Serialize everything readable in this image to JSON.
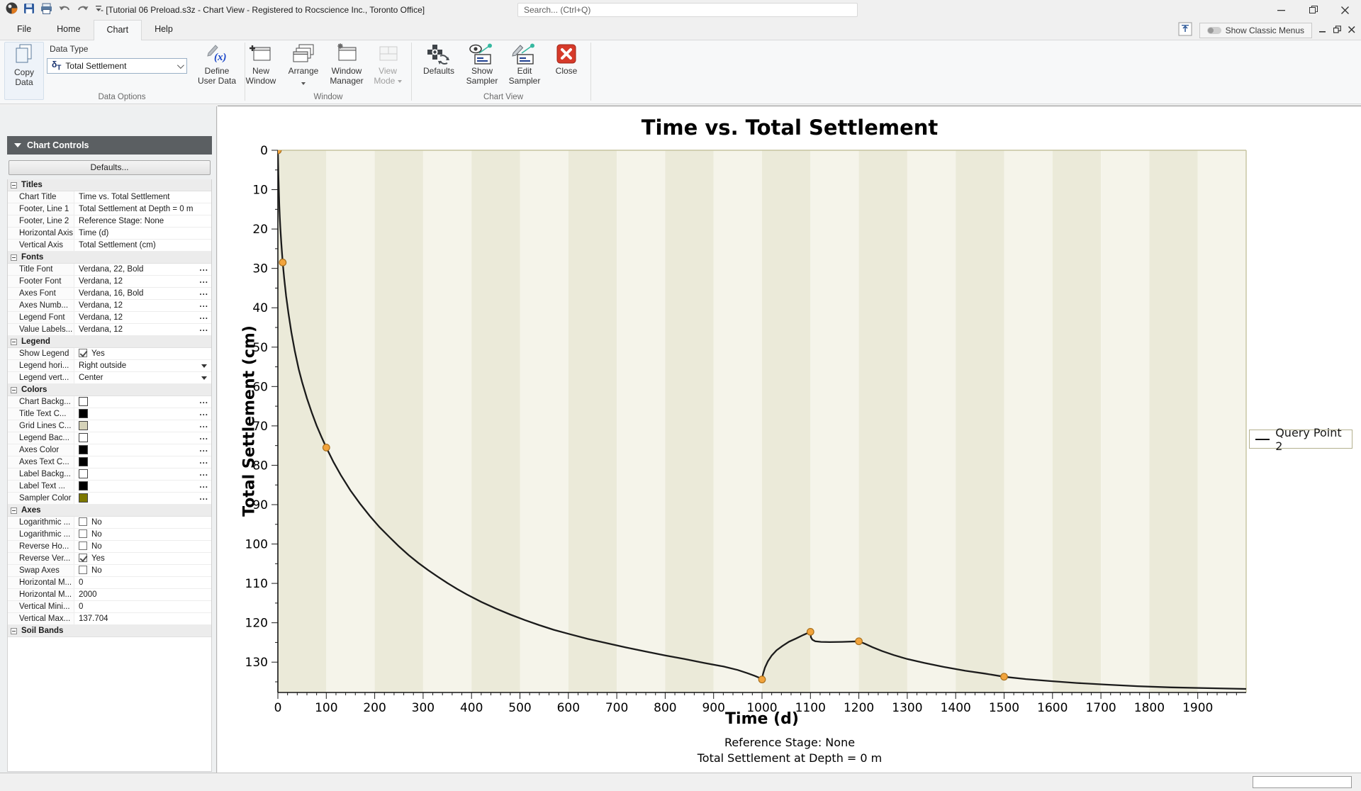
{
  "titlebar": {
    "title": "- [Tutorial 06 Preload.s3z - Chart View - Registered to Rocscience Inc., Toronto Office]",
    "search_placeholder": "Search... (Ctrl+Q)"
  },
  "topbar": {
    "classic_menus": "Show Classic Menus"
  },
  "tabs": {
    "items": [
      {
        "label": "File",
        "active": false
      },
      {
        "label": "Home",
        "active": false
      },
      {
        "label": "Chart",
        "active": true
      },
      {
        "label": "Help",
        "active": false
      }
    ]
  },
  "ribbon": {
    "group_labels": [
      "Data Options",
      "Window",
      "Chart View"
    ],
    "copy_data": {
      "line1": "Copy",
      "line2": "Data"
    },
    "data_type": {
      "label": "Data Type",
      "symbol_delta": "δ",
      "symbol_sub": "T",
      "value": "Total Settlement"
    },
    "define_user_data": {
      "icon_text": "(x)",
      "line1": "Define",
      "line2": "User Data"
    },
    "new_window": {
      "line1": "New",
      "line2": "Window"
    },
    "arrange": {
      "line1": "Arrange"
    },
    "window_manager": {
      "line1": "Window",
      "line2": "Manager"
    },
    "view_mode": {
      "line1": "View",
      "line2": "Mode"
    },
    "defaults": {
      "line1": "Defaults"
    },
    "show_sampler": {
      "line1": "Show",
      "line2": "Sampler"
    },
    "edit_sampler": {
      "line1": "Edit",
      "line2": "Sampler"
    },
    "close": {
      "line1": "Close"
    }
  },
  "panel": {
    "header": "Chart Controls",
    "defaults_button": "Defaults...",
    "sections": [
      {
        "title": "Titles",
        "rows": [
          {
            "label": "Chart Title",
            "value": "Time vs. Total Settlement",
            "type": "text"
          },
          {
            "label": "Footer, Line 1",
            "value": "Total Settlement at Depth = 0 m",
            "type": "text"
          },
          {
            "label": "Footer, Line 2",
            "value": "Reference Stage: None",
            "type": "text"
          },
          {
            "label": "Horizontal Axis",
            "value": "Time (d)",
            "type": "text"
          },
          {
            "label": "Vertical Axis",
            "value": "Total Settlement (cm)",
            "type": "text"
          }
        ]
      },
      {
        "title": "Fonts",
        "rows": [
          {
            "label": "Title Font",
            "value": "Verdana, 22, Bold",
            "type": "ellipsis"
          },
          {
            "label": "Footer Font",
            "value": "Verdana, 12",
            "type": "ellipsis"
          },
          {
            "label": "Axes Font",
            "value": "Verdana, 16, Bold",
            "type": "ellipsis"
          },
          {
            "label": "Axes Numb...",
            "value": "Verdana, 12",
            "type": "ellipsis"
          },
          {
            "label": "Legend Font",
            "value": "Verdana, 12",
            "type": "ellipsis"
          },
          {
            "label": "Value Labels...",
            "value": "Verdana, 12",
            "type": "ellipsis"
          }
        ]
      },
      {
        "title": "Legend",
        "rows": [
          {
            "label": "Show Legend",
            "value": "Yes",
            "type": "checkbox",
            "checked": true
          },
          {
            "label": "Legend hori...",
            "value": "Right outside",
            "type": "dropdown"
          },
          {
            "label": "Legend vert...",
            "value": "Center",
            "type": "dropdown"
          }
        ]
      },
      {
        "title": "Colors",
        "rows": [
          {
            "label": "Chart Backg...",
            "value": "",
            "type": "color",
            "swatch": "#ffffff"
          },
          {
            "label": "Title Text C...",
            "value": "",
            "type": "color",
            "swatch": "#000000"
          },
          {
            "label": "Grid Lines C...",
            "value": "",
            "type": "color",
            "swatch": "#d5d2b8"
          },
          {
            "label": "Legend Bac...",
            "value": "",
            "type": "color",
            "swatch": "#ffffff"
          },
          {
            "label": "Axes Color",
            "value": "",
            "type": "color",
            "swatch": "#000000"
          },
          {
            "label": "Axes Text C...",
            "value": "",
            "type": "color",
            "swatch": "#000000"
          },
          {
            "label": "Label Backg...",
            "value": "",
            "type": "color",
            "swatch": "#ffffff"
          },
          {
            "label": "Label Text ...",
            "value": "",
            "type": "color",
            "swatch": "#000000"
          },
          {
            "label": "Sampler Color",
            "value": "",
            "type": "color",
            "swatch": "#7d7800"
          }
        ]
      },
      {
        "title": "Axes",
        "rows": [
          {
            "label": "Logarithmic ...",
            "value": "No",
            "type": "checkbox",
            "checked": false
          },
          {
            "label": "Logarithmic ...",
            "value": "No",
            "type": "checkbox",
            "checked": false
          },
          {
            "label": "Reverse Ho...",
            "value": "No",
            "type": "checkbox",
            "checked": false
          },
          {
            "label": "Reverse Ver...",
            "value": "Yes",
            "type": "checkbox",
            "checked": true
          },
          {
            "label": "Swap Axes",
            "value": "No",
            "type": "checkbox",
            "checked": false
          },
          {
            "label": "Horizontal M...",
            "value": "0",
            "type": "text"
          },
          {
            "label": "Horizontal M...",
            "value": "2000",
            "type": "text"
          },
          {
            "label": "Vertical Mini...",
            "value": "0",
            "type": "text"
          },
          {
            "label": "Vertical Max...",
            "value": "137.704",
            "type": "text"
          }
        ]
      },
      {
        "title": "Soil Bands",
        "rows": []
      }
    ]
  },
  "chart_data": {
    "type": "line",
    "title": "Time vs. Total Settlement",
    "xlabel": "Time (d)",
    "ylabel": "Total Settlement (cm)",
    "footer": [
      "Reference Stage: None",
      "Total Settlement at Depth = 0 m"
    ],
    "xlim": [
      0,
      2000
    ],
    "ylim": [
      0,
      137.704
    ],
    "y_reversed": true,
    "x_ticks": [
      0,
      100,
      200,
      300,
      400,
      500,
      600,
      700,
      800,
      900,
      1000,
      1100,
      1200,
      1300,
      1400,
      1500,
      1600,
      1700,
      1800,
      1900
    ],
    "y_ticks": [
      0,
      10,
      20,
      30,
      40,
      50,
      60,
      70,
      80,
      90,
      100,
      110,
      120,
      130
    ],
    "x_minor_step": 20,
    "y_minor_step": 5,
    "band_colors": [
      "#ebead9",
      "#f5f4ea"
    ],
    "band_width": 100,
    "line_color": "#1b1b1b",
    "marker_fill": "#f2a43c",
    "marker_stroke": "#aa701d",
    "plot_border_color": "#c6c3a0",
    "legend": {
      "position": "right outside center",
      "entries": [
        {
          "label": "Query Point 2",
          "color": "#141414"
        }
      ]
    },
    "series": [
      {
        "name": "Query Point 2",
        "points": [
          [
            0,
            0
          ],
          [
            1,
            6
          ],
          [
            2,
            10.5
          ],
          [
            3,
            14
          ],
          [
            4,
            17
          ],
          [
            5,
            19.5
          ],
          [
            7,
            23.5
          ],
          [
            10,
            28.5
          ],
          [
            13,
            32.5
          ],
          [
            17,
            37
          ],
          [
            22,
            41.5
          ],
          [
            28,
            46.3
          ],
          [
            35,
            51
          ],
          [
            43,
            55.6
          ],
          [
            50,
            58.9
          ],
          [
            60,
            63
          ],
          [
            70,
            66.6
          ],
          [
            80,
            69.9
          ],
          [
            90,
            72.8
          ],
          [
            100,
            75.5
          ],
          [
            115,
            79.2
          ],
          [
            130,
            82.5
          ],
          [
            150,
            86.4
          ],
          [
            170,
            89.8
          ],
          [
            190,
            92.9
          ],
          [
            210,
            95.7
          ],
          [
            230,
            98.2
          ],
          [
            250,
            100.6
          ],
          [
            270,
            102.8
          ],
          [
            290,
            104.8
          ],
          [
            310,
            106.6
          ],
          [
            330,
            108.3
          ],
          [
            350,
            109.9
          ],
          [
            370,
            111.4
          ],
          [
            390,
            112.8
          ],
          [
            420,
            114.7
          ],
          [
            450,
            116.4
          ],
          [
            480,
            117.9
          ],
          [
            510,
            119.3
          ],
          [
            540,
            120.6
          ],
          [
            570,
            121.8
          ],
          [
            600,
            122.8
          ],
          [
            640,
            124.1
          ],
          [
            680,
            125.2
          ],
          [
            720,
            126.3
          ],
          [
            760,
            127.3
          ],
          [
            800,
            128.3
          ],
          [
            840,
            129.2
          ],
          [
            880,
            130.2
          ],
          [
            920,
            131.1
          ],
          [
            950,
            132
          ],
          [
            970,
            132.8
          ],
          [
            985,
            133.5
          ],
          [
            995,
            134
          ],
          [
            1000,
            134.4
          ],
          [
            1002,
            133
          ],
          [
            1006,
            131.4
          ],
          [
            1012,
            129.8
          ],
          [
            1020,
            128.3
          ],
          [
            1030,
            127
          ],
          [
            1042,
            125.9
          ],
          [
            1056,
            124.8
          ],
          [
            1070,
            124
          ],
          [
            1085,
            123.1
          ],
          [
            1100,
            122.3
          ],
          [
            1101,
            123.7
          ],
          [
            1104,
            124.3
          ],
          [
            1110,
            124.7
          ],
          [
            1122,
            124.85
          ],
          [
            1140,
            124.9
          ],
          [
            1165,
            124.85
          ],
          [
            1200,
            124.7
          ],
          [
            1212,
            125.3
          ],
          [
            1228,
            126.2
          ],
          [
            1248,
            127.2
          ],
          [
            1272,
            128.2
          ],
          [
            1300,
            129.2
          ],
          [
            1335,
            130.2
          ],
          [
            1375,
            131.2
          ],
          [
            1420,
            132.2
          ],
          [
            1460,
            132.9
          ],
          [
            1500,
            133.7
          ],
          [
            1545,
            134.3
          ],
          [
            1595,
            134.8
          ],
          [
            1650,
            135.3
          ],
          [
            1710,
            135.7
          ],
          [
            1775,
            136.1
          ],
          [
            1845,
            136.4
          ],
          [
            1920,
            136.6
          ],
          [
            2000,
            136.8
          ]
        ]
      }
    ],
    "markers": {
      "points": [
        [
          0,
          0
        ],
        [
          10,
          28.5
        ],
        [
          100,
          75.5
        ],
        [
          1000,
          134.4
        ],
        [
          1100,
          122.3
        ],
        [
          1200,
          124.7
        ],
        [
          1500,
          133.7
        ]
      ]
    }
  }
}
